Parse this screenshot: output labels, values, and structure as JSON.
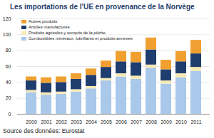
{
  "chart_data": {
    "type": "bar",
    "stacked": true,
    "title": "Les  importations de l'UE en provenance de  la Norvège",
    "caption": "Source des données: Eurostat",
    "categories": [
      "2000",
      "2001",
      "2002",
      "2003",
      "2004",
      "2005",
      "2006",
      "2007",
      "2008",
      "2009",
      "2010",
      "2011"
    ],
    "series": [
      {
        "name": "Combustibles minéraux, lubrifiants et produits annexes",
        "color": "#a9c8ea",
        "values": [
          27,
          24,
          25,
          28,
          32,
          42,
          47,
          44,
          58,
          38,
          46,
          54
        ]
      },
      {
        "name": "Produits agricoles y compris de la pêche",
        "color": "#f6e9b5",
        "values": [
          3,
          3,
          3,
          3,
          3,
          3,
          4,
          4,
          4,
          4,
          5,
          5
        ]
      },
      {
        "name": "Articles manufacturés",
        "color": "#1f3d6e",
        "values": [
          12,
          12,
          12,
          13,
          14,
          14,
          15,
          17,
          19,
          14,
          15,
          17
        ]
      },
      {
        "name": "Autres produits",
        "color": "#f0a030",
        "values": [
          5,
          7,
          7,
          7,
          8,
          8,
          13,
          13,
          15,
          12,
          13,
          17
        ]
      }
    ],
    "ylim": [
      0,
      120
    ],
    "yticks": [
      0,
      20,
      40,
      60,
      80,
      100,
      120
    ],
    "grid": true,
    "legend": "top-left"
  }
}
